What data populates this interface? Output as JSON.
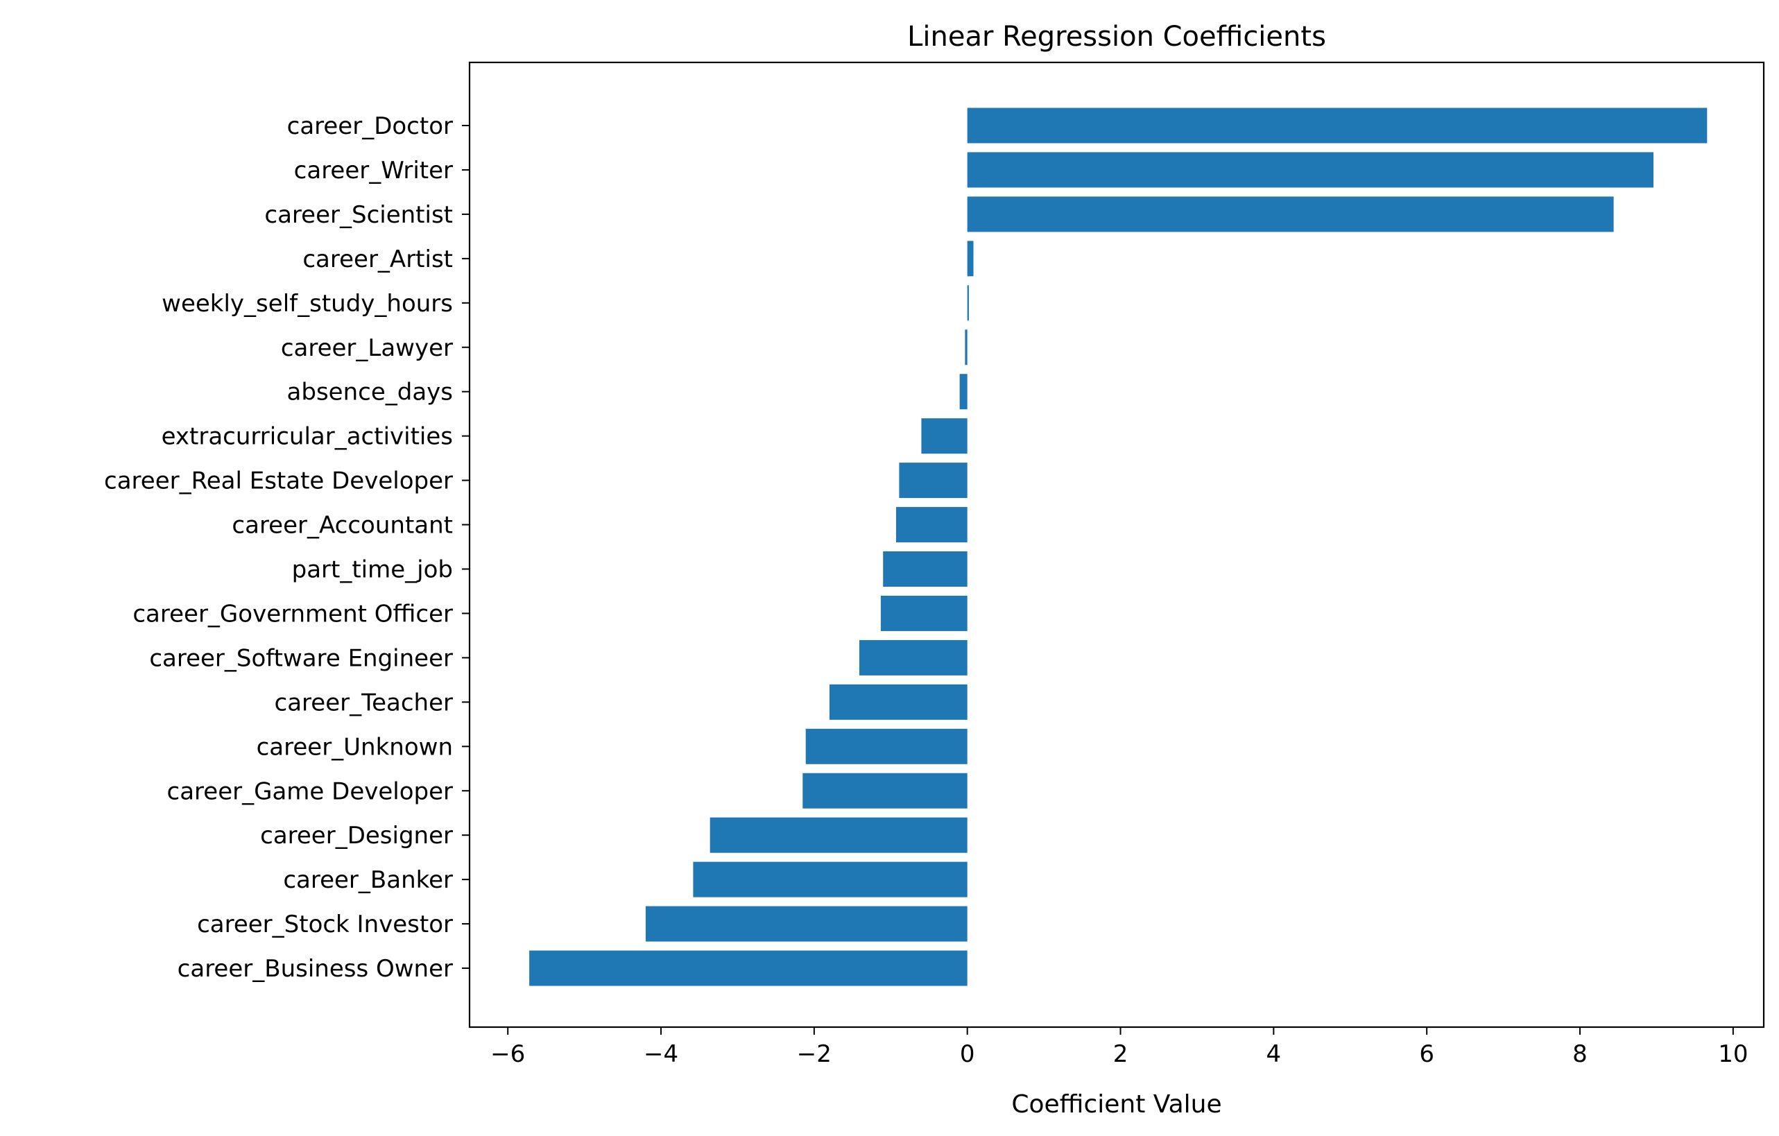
{
  "chart_data": {
    "type": "bar",
    "orientation": "horizontal",
    "title": "Linear Regression Coefficients",
    "xlabel": "Coefficient Value",
    "ylabel": "",
    "xlim": [
      -6.5,
      10.4
    ],
    "xticks": [
      -6,
      -4,
      -2,
      0,
      2,
      4,
      6,
      8,
      10
    ],
    "xtick_labels": [
      "−6",
      "−4",
      "−2",
      "0",
      "2",
      "4",
      "6",
      "8",
      "10"
    ],
    "grid": false,
    "bar_color": "#1f77b4",
    "categories": [
      "career_Doctor",
      "career_Writer",
      "career_Scientist",
      "career_Artist",
      "weekly_self_study_hours",
      "career_Lawyer",
      "absence_days",
      "extracurricular_activities",
      "career_Real Estate Developer",
      "career_Accountant",
      "part_time_job",
      "career_Government Officer",
      "career_Software Engineer",
      "career_Teacher",
      "career_Unknown",
      "career_Game Developer",
      "career_Designer",
      "career_Banker",
      "career_Stock Investor",
      "career_Business Owner"
    ],
    "values": [
      9.66,
      8.96,
      8.44,
      0.08,
      0.02,
      -0.03,
      -0.1,
      -0.6,
      -0.89,
      -0.93,
      -1.1,
      -1.13,
      -1.41,
      -1.8,
      -2.11,
      -2.15,
      -3.36,
      -3.58,
      -4.2,
      -5.72
    ]
  }
}
